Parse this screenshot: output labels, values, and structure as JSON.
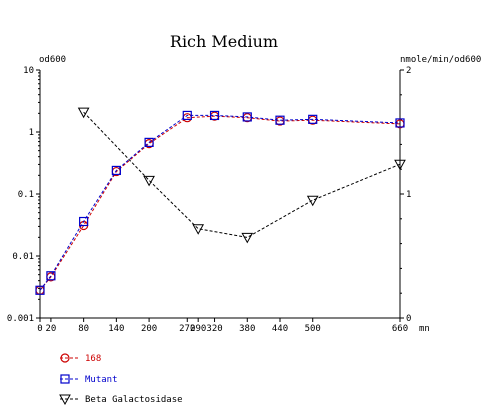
{
  "chart_data": {
    "type": "line",
    "title": "Rich Medium",
    "xlabel": "mn",
    "ylabel_left": "od600",
    "ylabel_right": "nmole/min/od600",
    "y_left_scale": "log",
    "y_left_range": [
      0.001,
      10
    ],
    "y_left_ticks": [
      "0.001",
      "0.01",
      "0.1",
      "1",
      "10"
    ],
    "y_right_range": [
      0,
      2
    ],
    "y_right_ticks": [
      "0",
      "1",
      "2"
    ],
    "x_range": [
      0,
      660
    ],
    "x_ticks": [
      0,
      20,
      80,
      140,
      200,
      270,
      290,
      320,
      380,
      440,
      500,
      660
    ],
    "x_tick_labels": [
      "0",
      "20",
      "80",
      "140",
      "200",
      "270",
      "290",
      "320",
      "380",
      "440",
      "500",
      "660"
    ],
    "grid": false,
    "legend_placement": "bottom-left",
    "series": [
      {
        "name": "168",
        "axis": "left",
        "color": "#cc0000",
        "marker": "circle",
        "x": [
          0,
          20,
          80,
          140,
          200,
          270,
          320,
          380,
          440,
          500,
          660
        ],
        "y": [
          0.0028,
          0.0046,
          0.031,
          0.23,
          0.65,
          1.7,
          1.8,
          1.7,
          1.5,
          1.55,
          1.35
        ]
      },
      {
        "name": "Mutant",
        "axis": "left",
        "color": "#0000cc",
        "marker": "square",
        "x": [
          0,
          20,
          80,
          140,
          200,
          270,
          320,
          380,
          440,
          500,
          660
        ],
        "y": [
          0.0028,
          0.0048,
          0.036,
          0.24,
          0.68,
          1.85,
          1.85,
          1.75,
          1.55,
          1.6,
          1.4
        ]
      },
      {
        "name": "Beta Galactosidase",
        "axis": "right",
        "color": "#000000",
        "marker": "triangle-down",
        "x": [
          80,
          200,
          290,
          380,
          500,
          660
        ],
        "y": [
          1.66,
          1.11,
          0.72,
          0.65,
          0.95,
          1.24
        ]
      }
    ]
  }
}
